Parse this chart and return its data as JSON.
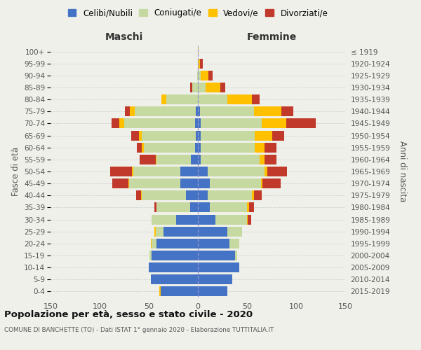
{
  "age_groups": [
    "0-4",
    "5-9",
    "10-14",
    "15-19",
    "20-24",
    "25-29",
    "30-34",
    "35-39",
    "40-44",
    "45-49",
    "50-54",
    "55-59",
    "60-64",
    "65-69",
    "70-74",
    "75-79",
    "80-84",
    "85-89",
    "90-94",
    "95-99",
    "100+"
  ],
  "birth_years": [
    "2015-2019",
    "2010-2014",
    "2005-2009",
    "2000-2004",
    "1995-1999",
    "1990-1994",
    "1985-1989",
    "1980-1984",
    "1975-1979",
    "1970-1974",
    "1965-1969",
    "1960-1964",
    "1955-1959",
    "1950-1954",
    "1945-1949",
    "1940-1944",
    "1935-1939",
    "1930-1934",
    "1925-1929",
    "1920-1924",
    "≤ 1919"
  ],
  "colors": {
    "celibi": "#4472c4",
    "coniugati": "#c5d9a0",
    "vedovi": "#ffc000",
    "divorziati": "#c0392b"
  },
  "maschi": {
    "celibi": [
      38,
      48,
      50,
      47,
      42,
      35,
      22,
      8,
      12,
      18,
      18,
      7,
      3,
      2,
      3,
      2,
      0,
      0,
      0,
      0,
      0
    ],
    "coniugati": [
      0,
      0,
      0,
      2,
      5,
      8,
      25,
      34,
      45,
      52,
      48,
      35,
      52,
      55,
      72,
      62,
      32,
      6,
      1,
      0,
      0
    ],
    "vedovi": [
      1,
      0,
      0,
      0,
      1,
      1,
      0,
      0,
      1,
      1,
      1,
      1,
      2,
      3,
      5,
      5,
      5,
      0,
      0,
      0,
      0
    ],
    "divorziati": [
      0,
      0,
      0,
      0,
      0,
      0,
      0,
      2,
      5,
      16,
      22,
      16,
      5,
      8,
      8,
      5,
      0,
      2,
      0,
      0,
      0
    ]
  },
  "femmine": {
    "celibi": [
      30,
      35,
      42,
      38,
      32,
      30,
      18,
      12,
      10,
      12,
      10,
      3,
      3,
      3,
      3,
      2,
      0,
      0,
      0,
      0,
      0
    ],
    "coniugati": [
      0,
      0,
      0,
      2,
      10,
      15,
      32,
      38,
      45,
      52,
      58,
      60,
      55,
      55,
      62,
      55,
      30,
      8,
      3,
      0,
      0
    ],
    "vedovi": [
      0,
      0,
      0,
      0,
      0,
      0,
      1,
      2,
      2,
      2,
      3,
      5,
      10,
      18,
      25,
      28,
      25,
      15,
      8,
      2,
      1
    ],
    "divorziati": [
      0,
      0,
      0,
      0,
      0,
      0,
      3,
      5,
      8,
      18,
      20,
      12,
      12,
      12,
      30,
      12,
      8,
      5,
      4,
      3,
      0
    ]
  },
  "title": "Popolazione per età, sesso e stato civile - 2020",
  "subtitle": "COMUNE DI BANCHETTE (TO) - Dati ISTAT 1° gennaio 2020 - Elaborazione TUTTITALIA.IT",
  "label_maschi": "Maschi",
  "label_femmine": "Femmine",
  "ylabel_left": "Fasce di età",
  "ylabel_right": "Anni di nascita",
  "xlim": 150,
  "bg_color": "#f0f0eb",
  "grid_color": "#cccccc",
  "legend_labels": [
    "Celibi/Nubili",
    "Coniugati/e",
    "Vedovi/e",
    "Divorziati/e"
  ]
}
